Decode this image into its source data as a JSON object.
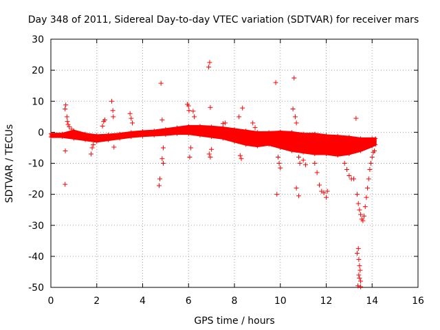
{
  "chart_data": {
    "type": "scatter",
    "title": "Day 348 of 2011, Sidereal Day-to-day VTEC variation (SDTVAR) for receiver mars",
    "xlabel": "GPS time / hours",
    "ylabel": "SDTVAR / TECUs",
    "xlim": [
      0,
      16
    ],
    "ylim": [
      -50,
      30
    ],
    "xticks": [
      "0",
      "2",
      "4",
      "6",
      "8",
      "10",
      "12",
      "14",
      "16"
    ],
    "yticks": [
      "30",
      "20",
      "10",
      "0",
      "-10",
      "-20",
      "-30",
      "-40",
      "-50"
    ],
    "grid": true,
    "marker": "+",
    "color": "#ff0000",
    "series": [
      {
        "name": "SDTVAR",
        "dense_band": {
          "x": [
            0.0,
            0.5,
            1.0,
            1.5,
            2.0,
            2.5,
            3.0,
            3.5,
            4.0,
            4.5,
            5.0,
            5.5,
            6.0,
            6.5,
            7.0,
            7.5,
            8.0,
            8.5,
            9.0,
            9.5,
            10.0,
            10.5,
            11.0,
            11.5,
            12.0,
            12.5,
            13.0,
            13.5,
            14.0,
            14.15
          ],
          "upper": [
            -0.5,
            -0.5,
            0.5,
            -0.5,
            -1.0,
            -0.8,
            -0.5,
            0.0,
            0.3,
            0.5,
            1.0,
            1.5,
            2.0,
            2.0,
            1.8,
            1.5,
            1.0,
            0.5,
            0.0,
            0.0,
            0.2,
            0.0,
            -0.5,
            -0.5,
            -1.0,
            -1.2,
            -1.5,
            -2.0,
            -2.0,
            -2.0
          ],
          "lower": [
            -1.5,
            -1.5,
            -2.0,
            -2.5,
            -3.0,
            -2.5,
            -2.0,
            -1.5,
            -1.2,
            -1.0,
            -0.8,
            -0.5,
            -0.5,
            -1.0,
            -1.5,
            -2.0,
            -3.0,
            -4.0,
            -4.5,
            -4.0,
            -5.0,
            -6.0,
            -6.5,
            -7.0,
            -7.0,
            -7.5,
            -7.0,
            -6.0,
            -4.5,
            -4.0
          ]
        },
        "points": [
          [
            0.65,
            8.8
          ],
          [
            0.62,
            7.5
          ],
          [
            0.63,
            -6.0
          ],
          [
            0.62,
            -16.8
          ],
          [
            0.7,
            5.0
          ],
          [
            0.72,
            3.5
          ],
          [
            0.75,
            2.5
          ],
          [
            0.8,
            1.8
          ],
          [
            0.9,
            1.0
          ],
          [
            1.75,
            -7.0
          ],
          [
            1.8,
            -5.0
          ],
          [
            1.85,
            -4.0
          ],
          [
            2.3,
            3.5
          ],
          [
            2.25,
            2.0
          ],
          [
            2.35,
            4.0
          ],
          [
            2.65,
            10.0
          ],
          [
            2.7,
            7.0
          ],
          [
            2.72,
            5.0
          ],
          [
            2.75,
            -4.8
          ],
          [
            3.45,
            6.0
          ],
          [
            3.5,
            4.5
          ],
          [
            3.55,
            3.0
          ],
          [
            4.8,
            15.8
          ],
          [
            4.85,
            4.0
          ],
          [
            4.75,
            -15.0
          ],
          [
            4.72,
            -17.2
          ],
          [
            4.85,
            -8.5
          ],
          [
            4.9,
            -10.0
          ],
          [
            4.9,
            -5.0
          ],
          [
            5.95,
            9.0
          ],
          [
            6.0,
            8.5
          ],
          [
            6.02,
            7.0
          ],
          [
            6.05,
            -8.0
          ],
          [
            6.1,
            -5.0
          ],
          [
            6.2,
            6.8
          ],
          [
            6.25,
            5.0
          ],
          [
            6.88,
            21.0
          ],
          [
            6.92,
            22.5
          ],
          [
            6.95,
            8.0
          ],
          [
            6.9,
            -7.0
          ],
          [
            6.95,
            -8.0
          ],
          [
            7.0,
            -5.5
          ],
          [
            7.5,
            2.8
          ],
          [
            7.6,
            3.0
          ],
          [
            8.2,
            5.0
          ],
          [
            8.35,
            7.8
          ],
          [
            8.3,
            -8.5
          ],
          [
            8.25,
            -7.5
          ],
          [
            8.8,
            3.0
          ],
          [
            8.9,
            1.5
          ],
          [
            9.8,
            16.0
          ],
          [
            9.85,
            -20.0
          ],
          [
            9.9,
            -8.0
          ],
          [
            9.95,
            -10.0
          ],
          [
            10.0,
            -11.5
          ],
          [
            10.55,
            7.5
          ],
          [
            10.6,
            17.5
          ],
          [
            10.65,
            5.0
          ],
          [
            10.7,
            3.0
          ],
          [
            10.7,
            -18.0
          ],
          [
            10.8,
            -20.5
          ],
          [
            10.8,
            -8.0
          ],
          [
            10.85,
            -10.0
          ],
          [
            11.0,
            -9.0
          ],
          [
            11.1,
            -10.5
          ],
          [
            11.5,
            -10.0
          ],
          [
            11.6,
            -13.0
          ],
          [
            11.7,
            -17.0
          ],
          [
            11.8,
            -19.0
          ],
          [
            11.9,
            -19.5
          ],
          [
            12.0,
            -21.0
          ],
          [
            12.05,
            -19.0
          ],
          [
            12.8,
            -10.0
          ],
          [
            12.9,
            -12.0
          ],
          [
            13.0,
            -14.0
          ],
          [
            13.1,
            -15.0
          ],
          [
            13.2,
            -15.0
          ],
          [
            13.3,
            4.5
          ],
          [
            13.35,
            -20.0
          ],
          [
            13.4,
            -23.0
          ],
          [
            13.45,
            -25.0
          ],
          [
            13.5,
            -26.5
          ],
          [
            13.55,
            -28.0
          ],
          [
            13.6,
            -28.5
          ],
          [
            13.65,
            -27.0
          ],
          [
            13.7,
            -24.0
          ],
          [
            13.75,
            -21.0
          ],
          [
            13.8,
            -18.0
          ],
          [
            13.85,
            -15.0
          ],
          [
            13.9,
            -12.0
          ],
          [
            13.95,
            -10.0
          ],
          [
            14.0,
            -8.0
          ],
          [
            14.05,
            -6.5
          ],
          [
            14.1,
            -6.0
          ],
          [
            13.4,
            -37.5
          ],
          [
            13.35,
            -39.0
          ],
          [
            13.42,
            -41.0
          ],
          [
            13.45,
            -43.0
          ],
          [
            13.48,
            -44.5
          ],
          [
            13.42,
            -46.0
          ],
          [
            13.45,
            -47.0
          ],
          [
            13.5,
            -48.0
          ],
          [
            13.38,
            -49.5
          ],
          [
            13.5,
            -49.8
          ]
        ]
      }
    ]
  }
}
